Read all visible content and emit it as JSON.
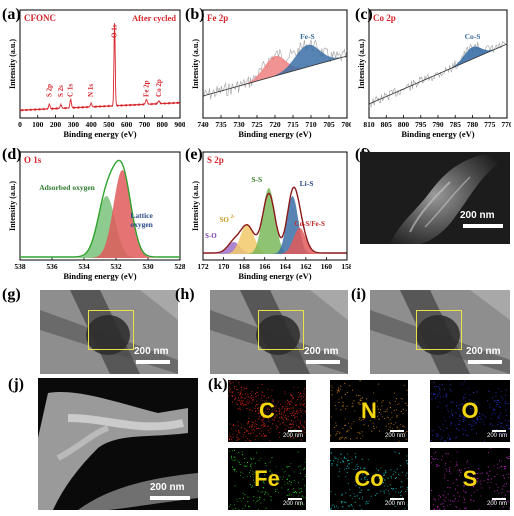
{
  "labels": {
    "a": "(a)",
    "b": "(b)",
    "c": "(c)",
    "d": "(d)",
    "e": "(e)",
    "f": "(f)",
    "g": "(g)",
    "h": "(h)",
    "i": "(i)",
    "j": "(j)",
    "k": "(k)"
  },
  "chart_data": [
    {
      "id": "a",
      "type": "line",
      "title": "CFONC",
      "annotation": "After cycled",
      "xlabel": "Binding energy (eV)",
      "ylabel": "Intensity (a.u.)",
      "xlim": [
        0,
        900
      ],
      "xticks": [
        0,
        100,
        200,
        300,
        400,
        500,
        600,
        700,
        800,
        900
      ],
      "peak_labels": [
        {
          "text": "S 2p",
          "x": 165
        },
        {
          "text": "S 2s",
          "x": 230
        },
        {
          "text": "C 1s",
          "x": 285
        },
        {
          "text": "N 1s",
          "x": 400
        },
        {
          "text": "O 1s",
          "x": 532
        },
        {
          "text": "Fe 2p",
          "x": 711
        },
        {
          "text": "Co 2p",
          "x": 781
        }
      ],
      "spectrum": [
        [
          0,
          0.04
        ],
        [
          90,
          0.05
        ],
        [
          165,
          0.08
        ],
        [
          180,
          0.06
        ],
        [
          230,
          0.09
        ],
        [
          250,
          0.07
        ],
        [
          285,
          0.14
        ],
        [
          300,
          0.08
        ],
        [
          400,
          0.1
        ],
        [
          420,
          0.08
        ],
        [
          510,
          0.09
        ],
        [
          525,
          0.2
        ],
        [
          532,
          1.0
        ],
        [
          540,
          0.18
        ],
        [
          560,
          0.1
        ],
        [
          700,
          0.11
        ],
        [
          711,
          0.16
        ],
        [
          725,
          0.13
        ],
        [
          760,
          0.12
        ],
        [
          781,
          0.15
        ],
        [
          800,
          0.12
        ],
        [
          900,
          0.12
        ]
      ],
      "color": "#d6242a"
    },
    {
      "id": "b",
      "type": "line",
      "title": "Fe 2p",
      "annotation": "Fe-S",
      "xlabel": "Binding energy (eV)",
      "ylabel": "Intensity (a.u.)",
      "xlim": [
        740,
        700
      ],
      "xticks": [
        740,
        735,
        730,
        725,
        720,
        715,
        710,
        705,
        700
      ],
      "fits": [
        {
          "name": "",
          "center": 720,
          "color": "#f08080"
        },
        {
          "name": "Fe-S",
          "center": 711,
          "color": "#3a6ea5"
        }
      ],
      "color": "#a0a0a0"
    },
    {
      "id": "c",
      "type": "line",
      "title": "Co 2p",
      "annotation": "Co-S",
      "xlabel": "Binding energy (eV)",
      "ylabel": "Intensity (a.u.)",
      "xlim": [
        810,
        770
      ],
      "xticks": [
        810,
        805,
        800,
        795,
        790,
        785,
        780,
        775,
        770
      ],
      "fits": [
        {
          "name": "Co-S",
          "center": 780,
          "color": "#3a6ea5"
        }
      ],
      "color": "#a0a0a0"
    },
    {
      "id": "d",
      "type": "line",
      "title": "O 1s",
      "xlabel": "Binding energy (eV)",
      "ylabel": "Intensity (a.u.)",
      "xlim": [
        538,
        528
      ],
      "xticks": [
        538,
        536,
        534,
        532,
        530,
        528
      ],
      "fits": [
        {
          "name": "Adsorbed oxygen",
          "center": 532.6,
          "color": "#7ac27a"
        },
        {
          "name": "Lattice oxygen",
          "center": 531.6,
          "color": "#e05a5a"
        }
      ],
      "envelope_color": "#2ea32e"
    },
    {
      "id": "e",
      "type": "line",
      "title": "S 2p",
      "xlabel": "Binding energy (eV)",
      "ylabel": "Intensity (a.u.)",
      "xlim": [
        172,
        158
      ],
      "xticks": [
        172,
        170,
        168,
        166,
        164,
        162,
        160,
        158
      ],
      "fits": [
        {
          "name": "S-O",
          "center": 169,
          "color": "#a070c8"
        },
        {
          "name": "SO",
          "center": 167.7,
          "color": "#f2c96a"
        },
        {
          "name": "S-S",
          "center": 165.6,
          "color": "#7ab85a"
        },
        {
          "name": "Li-S",
          "center": 163.3,
          "color": "#3a6ea5"
        },
        {
          "name": "Co-S/Fe-S",
          "center": 162.6,
          "color": "#e05a5a"
        }
      ],
      "so_superscript": "2-",
      "envelope_color": "#8b1a1a"
    }
  ],
  "images": {
    "f_scale": "200 nm",
    "g_scale": "200 nm",
    "h_scale": "200 nm",
    "i_scale": "200 nm",
    "j_scale": "200 nm"
  },
  "maps": [
    {
      "element": "C",
      "scale": "200 nm",
      "color": "#e02a1a"
    },
    {
      "element": "N",
      "scale": "200 nm",
      "color": "#e08a1a"
    },
    {
      "element": "O",
      "scale": "200 nm",
      "color": "#2a3ae0"
    },
    {
      "element": "Fe",
      "scale": "200 nm",
      "color": "#2ad02a"
    },
    {
      "element": "Co",
      "scale": "200 nm",
      "color": "#1ad0d0"
    },
    {
      "element": "S",
      "scale": "200 nm",
      "color": "#d02ad0"
    }
  ]
}
